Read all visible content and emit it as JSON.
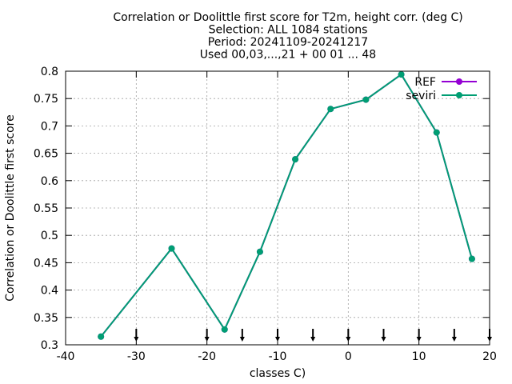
{
  "chart_data": {
    "type": "line",
    "title_lines": [
      "Correlation or Doolittle first score  for T2m, height corr. (deg C)",
      "Selection: ALL   1084 stations",
      "Period: 20241109-20241217",
      "Used 00,03,...,21 + 00 01 ... 48"
    ],
    "xlabel": "classes C)",
    "ylabel": "Correlation or Doolittle first score",
    "xlim": [
      -40,
      20
    ],
    "ylim": [
      0.3,
      0.8
    ],
    "x_ticks": [
      -40,
      -30,
      -20,
      -10,
      0,
      10,
      20
    ],
    "x_tick_labels": [
      "-40",
      "-30",
      "-20",
      "-10",
      "0",
      "10",
      "20"
    ],
    "y_ticks": [
      0.3,
      0.35,
      0.4,
      0.45,
      0.5,
      0.55,
      0.6,
      0.65,
      0.7,
      0.75,
      0.8
    ],
    "y_tick_labels": [
      "0.3",
      "0.35",
      "0.4",
      "0.45",
      "0.5",
      "0.55",
      "0.6",
      "0.65",
      "0.7",
      "0.75",
      "0.8"
    ],
    "grid": true,
    "legend_position": "top-right",
    "class_markers_x": [
      -30,
      -20,
      -15,
      -10,
      -5,
      0,
      5,
      10,
      15,
      20
    ],
    "series": [
      {
        "name": "REF",
        "color": "#9400d3",
        "x": [
          -35,
          -25,
          -17.5,
          -12.5,
          -7.5,
          -2.5,
          2.5,
          7.5,
          12.5,
          17.5
        ],
        "y": [
          0.315,
          0.476,
          0.328,
          0.47,
          0.639,
          0.731,
          0.748,
          0.794,
          0.688,
          0.457
        ]
      },
      {
        "name": "seviri",
        "color": "#009e73",
        "x": [
          -35,
          -25,
          -17.5,
          -12.5,
          -7.5,
          -2.5,
          2.5,
          7.5,
          12.5,
          17.5
        ],
        "y": [
          0.315,
          0.476,
          0.328,
          0.47,
          0.639,
          0.731,
          0.748,
          0.794,
          0.688,
          0.457
        ]
      }
    ]
  }
}
